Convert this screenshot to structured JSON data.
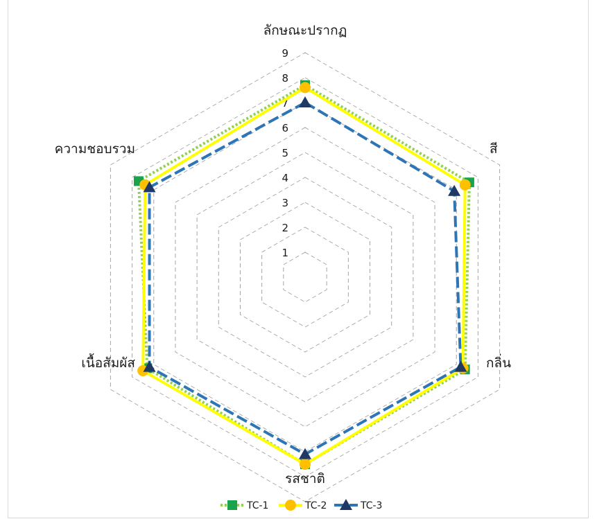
{
  "chart_data": {
    "type": "radar",
    "axes": [
      "ลักษณะปรากฏ",
      "สี",
      "กลิ่น",
      "รสชาติ",
      "เนื้อสัมผัส",
      "ความชอบรวม"
    ],
    "rlim": [
      0,
      9
    ],
    "ticks": [
      "1",
      "2",
      "3",
      "4",
      "5",
      "6",
      "7",
      "8",
      "9"
    ],
    "grid": true,
    "legend_position": "bottom",
    "series": [
      {
        "name": "TC-1",
        "values": [
          7.7,
          7.6,
          7.4,
          7.5,
          7.3,
          7.7
        ],
        "color": "#92d050",
        "line": "dotted",
        "marker": "square",
        "marker_color": "#1aa34a"
      },
      {
        "name": "TC-2",
        "values": [
          7.6,
          7.4,
          7.3,
          7.5,
          7.5,
          7.4
        ],
        "color": "#ffff00",
        "line": "solid",
        "marker": "circle",
        "marker_color": "#ffc000"
      },
      {
        "name": "TC-3",
        "values": [
          7.0,
          6.9,
          7.2,
          7.1,
          7.2,
          7.2
        ],
        "color": "#2e75b6",
        "line": "dashed",
        "marker": "triangle",
        "marker_color": "#1f3864"
      }
    ]
  }
}
